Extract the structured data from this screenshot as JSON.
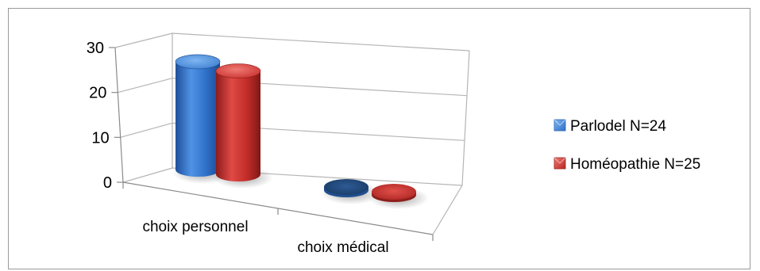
{
  "chart_data": {
    "type": "bar",
    "variant": "3d-cylinder",
    "categories": [
      "choix personnel",
      "choix médical"
    ],
    "series": [
      {
        "name": "Parlodel N=24",
        "values": [
          24,
          0
        ],
        "color": "#3f7fd0"
      },
      {
        "name": "Homéopathie N=25",
        "values": [
          23,
          0
        ],
        "color": "#c9302e"
      }
    ],
    "ylim": [
      0,
      30
    ],
    "yticks": [
      "0",
      "10",
      "20",
      "30"
    ],
    "grid": true,
    "legend_position": "right",
    "title": "",
    "xlabel": "",
    "ylabel": ""
  }
}
